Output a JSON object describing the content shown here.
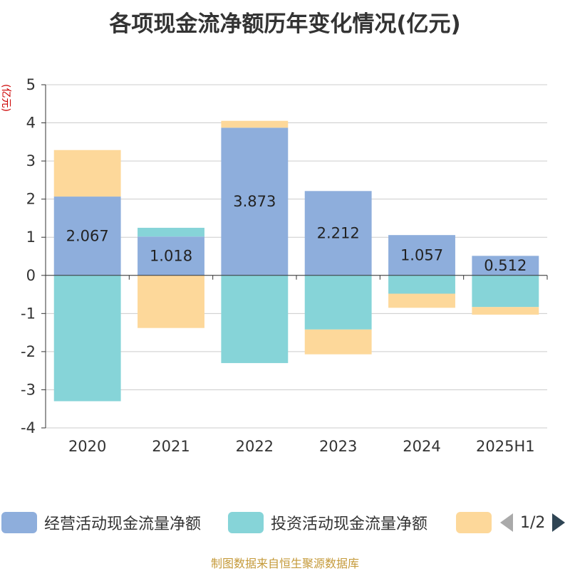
{
  "chart_data": {
    "type": "bar",
    "stacked": true,
    "title": "各项现金流净额历年变化情况(亿元)",
    "unit_label": "(亿元)",
    "categories": [
      "2020",
      "2021",
      "2022",
      "2023",
      "2024",
      "2025H1"
    ],
    "ylim": [
      -4,
      5
    ],
    "yticks": [
      5,
      4,
      3,
      2,
      1,
      0,
      -1,
      -2,
      -3,
      -4
    ],
    "grid": true,
    "legend_position": "bottom",
    "series": [
      {
        "name": "经营活动现金流量净额",
        "color": "#8eaedc",
        "values": [
          2.067,
          1.018,
          3.873,
          2.212,
          1.057,
          0.512
        ],
        "labels": [
          "2.067",
          "1.018",
          "3.873",
          "2.212",
          "1.057",
          "0.512"
        ]
      },
      {
        "name": "投资活动现金流量净额",
        "color": "#86d4d8",
        "values": [
          -3.3,
          0.23,
          -2.3,
          -1.42,
          -0.48,
          -0.83
        ]
      },
      {
        "name": "",
        "color": "#fdd89a",
        "values": [
          1.22,
          -1.38,
          0.18,
          -0.65,
          -0.37,
          -0.2
        ]
      }
    ]
  },
  "legend": {
    "items": [
      {
        "label": "经营活动现金流量净额",
        "color": "#8eaedc"
      },
      {
        "label": "投资活动现金流量净额",
        "color": "#86d4d8"
      },
      {
        "label": "",
        "color": "#fdd89a"
      }
    ],
    "page": "1/2"
  },
  "source": "制图数据来自恒生聚源数据库"
}
